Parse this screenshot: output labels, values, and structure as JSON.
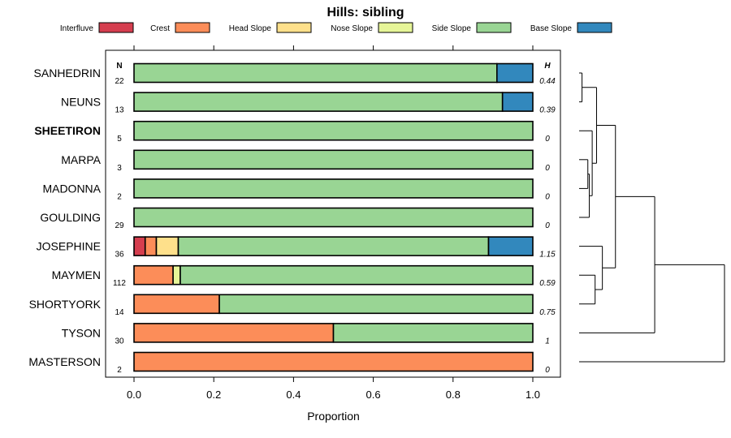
{
  "chart_data": {
    "type": "bar",
    "orientation": "horizontal",
    "stacked": true,
    "title": "Hills: sibling",
    "xlabel": "Proportion",
    "ylabel": "",
    "xlim": [
      0,
      1
    ],
    "x_ticks": [
      "0.0",
      "0.2",
      "0.4",
      "0.6",
      "0.8",
      "1.0"
    ],
    "n_header": "N",
    "h_header": "H",
    "legend": [
      {
        "name": "Interfluve",
        "color": "#d53e4f"
      },
      {
        "name": "Crest",
        "color": "#fc8d59"
      },
      {
        "name": "Head Slope",
        "color": "#fee08b"
      },
      {
        "name": "Nose Slope",
        "color": "#e6f598"
      },
      {
        "name": "Side Slope",
        "color": "#99d594"
      },
      {
        "name": "Base Slope",
        "color": "#3288bd"
      }
    ],
    "rows": [
      {
        "name": "SANHEDRIN",
        "n": "22",
        "h": "0.44",
        "bold": false,
        "values": [
          0,
          0,
          0,
          0,
          0.91,
          0.09
        ]
      },
      {
        "name": "NEUNS",
        "n": "13",
        "h": "0.39",
        "bold": false,
        "values": [
          0,
          0,
          0,
          0,
          0.924,
          0.076
        ]
      },
      {
        "name": "SHEETIRON",
        "n": "5",
        "h": "0",
        "bold": true,
        "values": [
          0,
          0,
          0,
          0,
          1,
          0
        ]
      },
      {
        "name": "MARPA",
        "n": "3",
        "h": "0",
        "bold": false,
        "values": [
          0,
          0,
          0,
          0,
          1,
          0
        ]
      },
      {
        "name": "MADONNA",
        "n": "2",
        "h": "0",
        "bold": false,
        "values": [
          0,
          0,
          0,
          0,
          1,
          0
        ]
      },
      {
        "name": "GOULDING",
        "n": "29",
        "h": "0",
        "bold": false,
        "values": [
          0,
          0,
          0,
          0,
          1,
          0
        ]
      },
      {
        "name": "JOSEPHINE",
        "n": "36",
        "h": "1.15",
        "bold": false,
        "values": [
          0.028,
          0.028,
          0.055,
          0,
          0.778,
          0.111
        ]
      },
      {
        "name": "MAYMEN",
        "n": "112",
        "h": "0.59",
        "bold": false,
        "values": [
          0,
          0.098,
          0,
          0.018,
          0.884,
          0
        ]
      },
      {
        "name": "SHORTYORK",
        "n": "14",
        "h": "0.75",
        "bold": false,
        "values": [
          0,
          0.214,
          0,
          0,
          0.786,
          0
        ]
      },
      {
        "name": "TYSON",
        "n": "30",
        "h": "1",
        "bold": false,
        "values": [
          0,
          0.5,
          0,
          0,
          0.5,
          0
        ]
      },
      {
        "name": "MASTERSON",
        "n": "2",
        "h": "0",
        "bold": false,
        "values": [
          0,
          1,
          0,
          0,
          0,
          0
        ]
      }
    ],
    "dendrogram": {
      "leaves": [
        "SANHEDRIN",
        "NEUNS",
        "SHEETIRON",
        "MARPA",
        "MADONNA",
        "GOULDING",
        "JOSEPHINE",
        "MAYMEN",
        "SHORTYORK",
        "TYSON",
        "MASTERSON"
      ],
      "merges": [
        {
          "a": 0,
          "b": 1,
          "h": 0.02
        },
        {
          "a": 3,
          "b": 4,
          "h": 0.06
        },
        {
          "a": 5,
          "b": "m1",
          "h": 0.07
        },
        {
          "a": 2,
          "b": "m2",
          "h": 0.09
        },
        {
          "a": "m0",
          "b": "m3",
          "h": 0.12
        },
        {
          "a": 7,
          "b": 8,
          "h": 0.11
        },
        {
          "a": 6,
          "b": "m5",
          "h": 0.16
        },
        {
          "a": "m4",
          "b": "m6",
          "h": 0.25
        },
        {
          "a": 9,
          "b": "m7",
          "h": 0.52
        },
        {
          "a": 10,
          "b": "m8",
          "h": 1.0
        }
      ]
    }
  }
}
